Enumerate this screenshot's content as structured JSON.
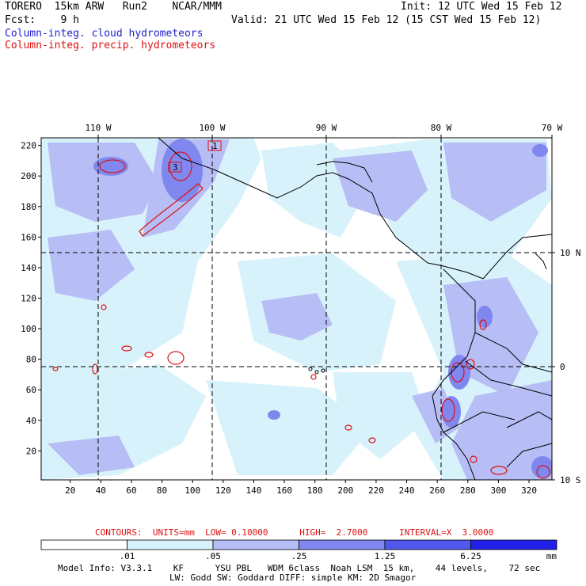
{
  "header": {
    "model": "TORERO  15km ARW   Run2    NCAR/MMM",
    "init": "Init: 12 UTC Wed 15 Feb 12",
    "fcst": "Fcst:    9 h",
    "valid": "Valid: 21 UTC Wed 15 Feb 12 (15 CST Wed 15 Feb 12)",
    "field1": "Column-integ. cloud hydrometeors",
    "field2": "Column-integ. precip. hydrometeors"
  },
  "colors": {
    "field1": "#2222cc",
    "field2": "#dd1111",
    "shade": [
      "#ffffff",
      "#d8f2fb",
      "#b7bdf5",
      "#8088f0",
      "#5058ec",
      "#2020e8"
    ]
  },
  "map": {
    "lon_labels": [
      "110 W",
      "100 W",
      "90 W",
      "80 W",
      "70 W"
    ],
    "lat_labels": [
      "10 N",
      "0",
      "10 S"
    ],
    "x_ticks": [
      "20",
      "40",
      "60",
      "80",
      "100",
      "120",
      "140",
      "160",
      "180",
      "200",
      "220",
      "240",
      "260",
      "280",
      "300",
      "320"
    ],
    "y_ticks": [
      "220",
      "200",
      "180",
      "160",
      "140",
      "120",
      "100",
      "80",
      "60",
      "40",
      "20"
    ],
    "x_range": [
      1,
      335
    ],
    "y_range": [
      1,
      225
    ]
  },
  "contours": {
    "info": "CONTOURS:  UNITS=mm  LOW= 0.10000      HIGH=  2.7000      INTERVAL=X  3.0000",
    "high_labels": [
      "1",
      "3"
    ]
  },
  "colorbar": {
    "labels": [
      ".01",
      ".05",
      ".25",
      "1.25",
      "6.25"
    ],
    "units": "mm"
  },
  "footer": {
    "line1": "Model Info: V3.3.1    KF      YSU PBL   WDM 6class  Noah LSM  15 km,    44 levels,    72 sec",
    "line2": "LW: Godd SW: Goddard DIFF: simple KM: 2D Smagor"
  }
}
